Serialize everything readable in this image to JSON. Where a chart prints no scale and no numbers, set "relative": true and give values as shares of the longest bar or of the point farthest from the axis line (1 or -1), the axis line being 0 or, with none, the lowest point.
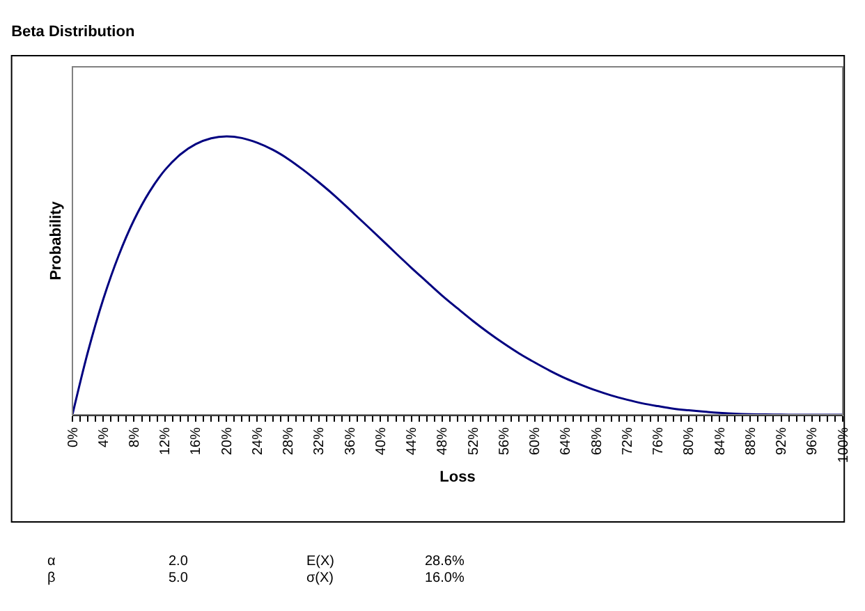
{
  "chart_data": {
    "type": "line",
    "title": "Beta Distribution",
    "xlabel": "Loss",
    "ylabel": "Probability",
    "relative": true,
    "marker": "none",
    "line_style": "solid",
    "x": [
      0,
      2,
      4,
      6,
      8,
      10,
      12,
      14,
      16,
      18,
      20,
      22,
      24,
      26,
      28,
      30,
      32,
      34,
      36,
      38,
      40,
      42,
      44,
      46,
      48,
      50,
      52,
      54,
      56,
      58,
      60,
      62,
      64,
      66,
      68,
      70,
      72,
      74,
      76,
      78,
      80,
      82,
      84,
      86,
      88,
      90,
      92,
      94,
      96,
      98,
      100
    ],
    "series": [
      {
        "color": "#000080",
        "values": [
          0,
          0.225,
          0.415,
          0.572,
          0.7,
          0.801,
          0.879,
          0.935,
          0.972,
          0.993,
          1.0,
          0.994,
          0.977,
          0.952,
          0.919,
          0.879,
          0.835,
          0.788,
          0.737,
          0.685,
          0.633,
          0.58,
          0.528,
          0.478,
          0.428,
          0.382,
          0.337,
          0.295,
          0.256,
          0.22,
          0.188,
          0.158,
          0.131,
          0.108,
          0.087,
          0.069,
          0.054,
          0.041,
          0.031,
          0.022,
          0.016,
          0.011,
          0.007,
          0.004,
          0.002,
          0.001,
          0.0005,
          0.0001,
          0,
          0,
          0
        ]
      }
    ],
    "xlim": [
      0,
      100
    ],
    "xticks": [
      {
        "value": 0,
        "label": "0%"
      },
      {
        "value": 1,
        "label": null
      },
      {
        "value": 2,
        "label": null
      },
      {
        "value": 3,
        "label": null
      },
      {
        "value": 4,
        "label": "4%"
      },
      {
        "value": 5,
        "label": null
      },
      {
        "value": 6,
        "label": null
      },
      {
        "value": 7,
        "label": null
      },
      {
        "value": 8,
        "label": "8%"
      },
      {
        "value": 9,
        "label": null
      },
      {
        "value": 10,
        "label": null
      },
      {
        "value": 11,
        "label": null
      },
      {
        "value": 12,
        "label": "12%"
      },
      {
        "value": 13,
        "label": null
      },
      {
        "value": 14,
        "label": null
      },
      {
        "value": 15,
        "label": null
      },
      {
        "value": 16,
        "label": "16%"
      },
      {
        "value": 17,
        "label": null
      },
      {
        "value": 18,
        "label": null
      },
      {
        "value": 19,
        "label": null
      },
      {
        "value": 20,
        "label": "20%"
      },
      {
        "value": 21,
        "label": null
      },
      {
        "value": 22,
        "label": null
      },
      {
        "value": 23,
        "label": null
      },
      {
        "value": 24,
        "label": "24%"
      },
      {
        "value": 25,
        "label": null
      },
      {
        "value": 26,
        "label": null
      },
      {
        "value": 27,
        "label": null
      },
      {
        "value": 28,
        "label": "28%"
      },
      {
        "value": 29,
        "label": null
      },
      {
        "value": 30,
        "label": null
      },
      {
        "value": 31,
        "label": null
      },
      {
        "value": 32,
        "label": "32%"
      },
      {
        "value": 33,
        "label": null
      },
      {
        "value": 34,
        "label": null
      },
      {
        "value": 35,
        "label": null
      },
      {
        "value": 36,
        "label": "36%"
      },
      {
        "value": 37,
        "label": null
      },
      {
        "value": 38,
        "label": null
      },
      {
        "value": 39,
        "label": null
      },
      {
        "value": 40,
        "label": "40%"
      },
      {
        "value": 41,
        "label": null
      },
      {
        "value": 42,
        "label": null
      },
      {
        "value": 43,
        "label": null
      },
      {
        "value": 44,
        "label": "44%"
      },
      {
        "value": 45,
        "label": null
      },
      {
        "value": 46,
        "label": null
      },
      {
        "value": 47,
        "label": null
      },
      {
        "value": 48,
        "label": "48%"
      },
      {
        "value": 49,
        "label": null
      },
      {
        "value": 50,
        "label": null
      },
      {
        "value": 51,
        "label": null
      },
      {
        "value": 52,
        "label": "52%"
      },
      {
        "value": 53,
        "label": null
      },
      {
        "value": 54,
        "label": null
      },
      {
        "value": 55,
        "label": null
      },
      {
        "value": 56,
        "label": "56%"
      },
      {
        "value": 57,
        "label": null
      },
      {
        "value": 58,
        "label": null
      },
      {
        "value": 59,
        "label": null
      },
      {
        "value": 60,
        "label": "60%"
      },
      {
        "value": 61,
        "label": null
      },
      {
        "value": 62,
        "label": null
      },
      {
        "value": 63,
        "label": null
      },
      {
        "value": 64,
        "label": "64%"
      },
      {
        "value": 65,
        "label": null
      },
      {
        "value": 66,
        "label": null
      },
      {
        "value": 67,
        "label": null
      },
      {
        "value": 68,
        "label": "68%"
      },
      {
        "value": 69,
        "label": null
      },
      {
        "value": 70,
        "label": null
      },
      {
        "value": 71,
        "label": null
      },
      {
        "value": 72,
        "label": "72%"
      },
      {
        "value": 73,
        "label": null
      },
      {
        "value": 74,
        "label": null
      },
      {
        "value": 75,
        "label": null
      },
      {
        "value": 76,
        "label": "76%"
      },
      {
        "value": 77,
        "label": null
      },
      {
        "value": 78,
        "label": null
      },
      {
        "value": 79,
        "label": null
      },
      {
        "value": 80,
        "label": "80%"
      },
      {
        "value": 81,
        "label": null
      },
      {
        "value": 82,
        "label": null
      },
      {
        "value": 83,
        "label": null
      },
      {
        "value": 84,
        "label": "84%"
      },
      {
        "value": 85,
        "label": null
      },
      {
        "value": 86,
        "label": null
      },
      {
        "value": 87,
        "label": null
      },
      {
        "value": 88,
        "label": "88%"
      },
      {
        "value": 89,
        "label": null
      },
      {
        "value": 90,
        "label": null
      },
      {
        "value": 91,
        "label": null
      },
      {
        "value": 92,
        "label": "92%"
      },
      {
        "value": 93,
        "label": null
      },
      {
        "value": 94,
        "label": null
      },
      {
        "value": 95,
        "label": null
      },
      {
        "value": 96,
        "label": "96%"
      },
      {
        "value": 97,
        "label": null
      },
      {
        "value": 98,
        "label": null
      },
      {
        "value": 99,
        "label": null
      },
      {
        "value": 100,
        "label": "100%"
      }
    ],
    "annotations": [
      "α",
      "2.0",
      "E(X)",
      "28.6%",
      "β",
      "5.0",
      "σ(X)",
      "16.0%"
    ]
  }
}
